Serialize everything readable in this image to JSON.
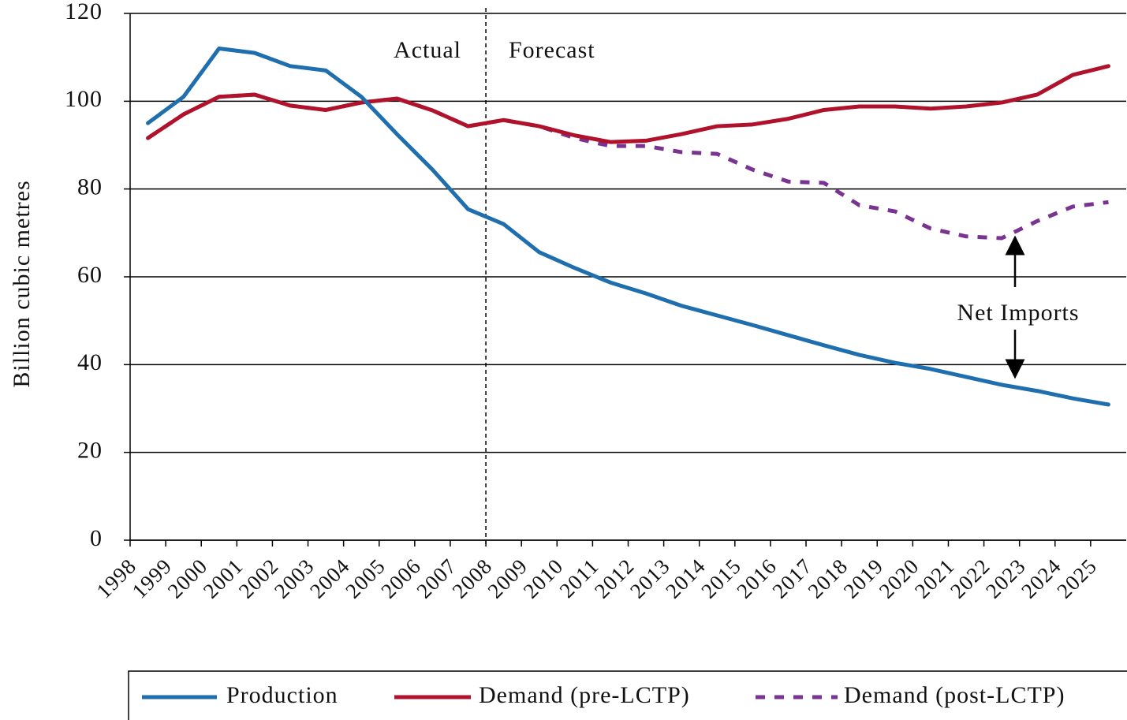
{
  "chart_data": {
    "type": "line",
    "y_label": "Billion cubic metres",
    "annotations": [
      "Actual",
      "Forecast",
      "Net Imports"
    ],
    "categories": [
      "1998",
      "1999",
      "2000",
      "2001",
      "2002",
      "2003",
      "2004",
      "2005",
      "2006",
      "2007",
      "2008",
      "2009",
      "2010",
      "2011",
      "2012",
      "2013",
      "2014",
      "2015",
      "2016",
      "2017",
      "2018",
      "2019",
      "2020",
      "2021",
      "2022",
      "2023",
      "2024",
      "2025"
    ],
    "series": [
      {
        "name": "Production",
        "color": "#1f6fae",
        "dash": false,
        "values": [
          95,
          101,
          112,
          111,
          108,
          107,
          101,
          92.5,
          84.4,
          75.4,
          72,
          65.6,
          62,
          58.7,
          56.2,
          53.4,
          51.2,
          49,
          46.7,
          44.4,
          42.2,
          40.4,
          39,
          37.2,
          35.4,
          34,
          32.3,
          30.9
        ]
      },
      {
        "name": "Demand (pre-LCTP)",
        "color": "#b0122c",
        "dash": false,
        "values": [
          91.6,
          97,
          101,
          101.5,
          99,
          98,
          99.7,
          100.6,
          97.9,
          94.3,
          95.7,
          94.3,
          92.2,
          90.7,
          91,
          92.5,
          94.3,
          94.7,
          96,
          98,
          98.8,
          98.8,
          98.3,
          98.8,
          99.7,
          101.5,
          106,
          108
        ]
      },
      {
        "name": "Demand (post-LCTP)",
        "color": "#7a3391",
        "dash": true,
        "values": [
          91.6,
          97,
          101,
          101.5,
          99,
          98,
          99.7,
          100.6,
          97.9,
          94.3,
          95.7,
          94.3,
          91.6,
          89.8,
          89.8,
          88.4,
          88,
          84.4,
          81.7,
          81.4,
          76.3,
          74.9,
          71,
          69.2,
          68.8,
          72.7,
          76,
          77
        ]
      }
    ],
    "ylim": [
      0,
      120
    ],
    "yticks": [
      0,
      20,
      40,
      60,
      80,
      100,
      120
    ],
    "grid": true,
    "legend": "bottom"
  }
}
